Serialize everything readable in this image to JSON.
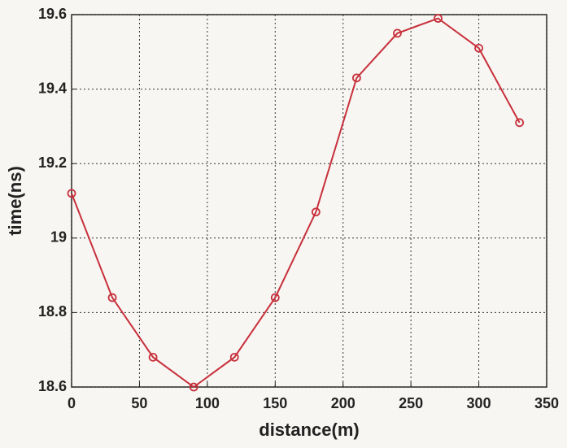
{
  "chart_data": {
    "type": "line",
    "x_label": "distance(m)",
    "y_label": "time(ns)",
    "x": [
      0,
      30,
      60,
      90,
      120,
      150,
      180,
      210,
      240,
      270,
      300,
      330
    ],
    "series": [
      {
        "color": "#c8303c",
        "values": [
          19.12,
          18.84,
          18.68,
          18.6,
          18.68,
          18.84,
          19.07,
          19.43,
          19.55,
          19.59,
          19.51,
          19.31
        ]
      }
    ],
    "xlim": [
      0,
      350
    ],
    "xticks": [
      0,
      50,
      100,
      150,
      200,
      250,
      300,
      350
    ],
    "ylim": [
      18.6,
      19.6
    ],
    "yticks": [
      18.6,
      18.8,
      19,
      19.2,
      19.4,
      19.6
    ],
    "grid": true,
    "markers": "open-circle"
  }
}
